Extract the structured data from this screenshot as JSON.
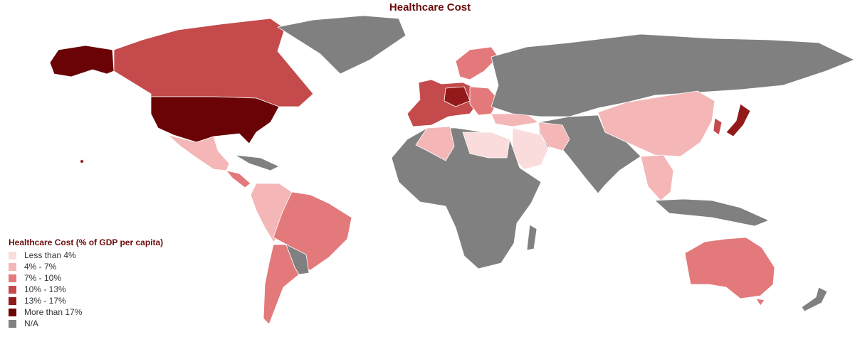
{
  "title": "Healthcare Cost",
  "legend": {
    "title": "Healthcare Cost (% of GDP per capita)",
    "items": [
      {
        "label": "Less than 4%",
        "color": "#fadcdc"
      },
      {
        "label": "4% - 7%",
        "color": "#f4b6b6"
      },
      {
        "label": "7% - 10%",
        "color": "#e3797a"
      },
      {
        "label": "10% - 13%",
        "color": "#c44a4b"
      },
      {
        "label": "13% - 17%",
        "color": "#931a1b"
      },
      {
        "label": "More than 17%",
        "color": "#6a0305"
      },
      {
        "label": "N/A",
        "color": "#808080"
      }
    ]
  },
  "colors": {
    "less_than_4": "#fadcdc",
    "from_4_to_7": "#f4b6b6",
    "from_7_to_10": "#e3797a",
    "from_10_to_13": "#c44a4b",
    "from_13_to_17": "#931a1b",
    "more_than_17": "#6a0305",
    "na": "#808080",
    "border": "#ffffff"
  }
}
